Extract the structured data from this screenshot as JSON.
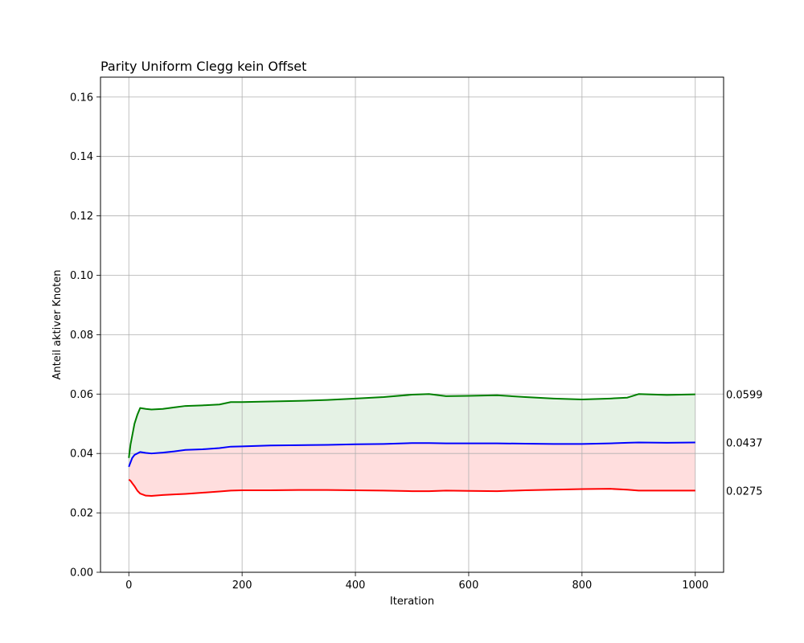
{
  "chart_data": {
    "type": "line",
    "title": "Parity Uniform Clegg kein Offset",
    "xlabel": "Iteration",
    "ylabel": "Anteil aktiver Knoten",
    "xlim": [
      -50,
      1050
    ],
    "ylim": [
      0,
      0.1667
    ],
    "xticks": [
      0,
      200,
      400,
      600,
      800,
      1000
    ],
    "xtick_labels": [
      "0",
      "200",
      "400",
      "600",
      "800",
      "1000"
    ],
    "yticks": [
      0,
      0.02,
      0.04,
      0.06,
      0.08,
      0.1,
      0.12,
      0.14,
      0.16
    ],
    "ytick_labels": [
      "0.00",
      "0.02",
      "0.04",
      "0.06",
      "0.08",
      "0.10",
      "0.12",
      "0.14",
      "0.16"
    ],
    "grid": true,
    "x": [
      0,
      3,
      6,
      10,
      15,
      20,
      30,
      40,
      60,
      80,
      100,
      130,
      160,
      180,
      200,
      250,
      300,
      350,
      400,
      450,
      500,
      530,
      560,
      600,
      650,
      700,
      750,
      800,
      850,
      880,
      900,
      950,
      1000
    ],
    "series": [
      {
        "color": "#008000",
        "values": [
          0.0385,
          0.043,
          0.046,
          0.05,
          0.053,
          0.0553,
          0.055,
          0.0548,
          0.055,
          0.0555,
          0.056,
          0.0562,
          0.0565,
          0.0573,
          0.0573,
          0.0575,
          0.0577,
          0.058,
          0.0585,
          0.059,
          0.0598,
          0.06,
          0.0593,
          0.0594,
          0.0596,
          0.059,
          0.0585,
          0.0582,
          0.0585,
          0.0588,
          0.06,
          0.0597,
          0.0599
        ]
      },
      {
        "color": "#0000ff",
        "values": [
          0.0355,
          0.037,
          0.0385,
          0.0395,
          0.04,
          0.0405,
          0.0402,
          0.04,
          0.0403,
          0.0407,
          0.0412,
          0.0414,
          0.0418,
          0.0423,
          0.0424,
          0.0427,
          0.0428,
          0.0429,
          0.0431,
          0.0432,
          0.0435,
          0.0435,
          0.0434,
          0.0434,
          0.0434,
          0.0433,
          0.0432,
          0.0432,
          0.0434,
          0.0436,
          0.0437,
          0.0436,
          0.0437
        ]
      },
      {
        "color": "#ff0000",
        "values": [
          0.0312,
          0.0308,
          0.03,
          0.029,
          0.0275,
          0.0265,
          0.0258,
          0.0257,
          0.026,
          0.0262,
          0.0264,
          0.0268,
          0.0272,
          0.0275,
          0.0276,
          0.0276,
          0.0277,
          0.0277,
          0.0276,
          0.0275,
          0.0273,
          0.0273,
          0.0275,
          0.0274,
          0.0273,
          0.0276,
          0.0278,
          0.028,
          0.0281,
          0.0278,
          0.0275,
          0.0275,
          0.0275
        ]
      }
    ],
    "fill_colors": {
      "upper_band": "#e5f2e5",
      "lower_band": "#ffdede"
    },
    "end_labels": [
      "0.0599",
      "0.0437",
      "0.0275"
    ]
  }
}
